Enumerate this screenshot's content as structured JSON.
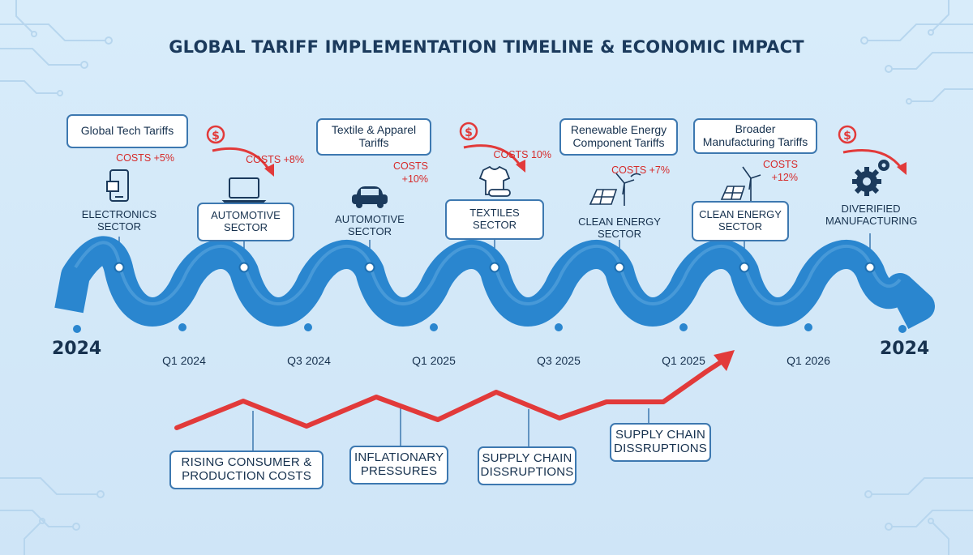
{
  "title": "GLOBAL TARIFF IMPLEMENTATION TIMELINE & ECONOMIC IMPACT",
  "colors": {
    "background": "#d5e9f8",
    "wave": "#2a86cf",
    "arrow": "#e23a3a",
    "box_border": "#3d78b0",
    "text": "#17324f",
    "cost_text": "#d62a2a"
  },
  "tariffs": [
    "Global Tech Tariffs",
    "Textile & Apparel Tariffs",
    "Renewable Energy Component Tariffs",
    "Broader Manufacturing Tariffs"
  ],
  "sectors": [
    {
      "label": "ELECTRONICS SECTOR",
      "icon": "smartphone-icon",
      "cost": "COSTS +5%"
    },
    {
      "label": "AUTOMOTIVE SECTOR",
      "icon": "laptop-icon",
      "cost": "COSTS +8%"
    },
    {
      "label": "AUTOMOTIVE SECTOR",
      "icon": "car-icon",
      "cost": "COSTS +10%"
    },
    {
      "label": "TEXTILES SECTOR",
      "icon": "tshirt-icon",
      "cost": "COSTS 10%"
    },
    {
      "label": "CLEAN ENERGY SECTOR",
      "icon": "solar-wind-icon",
      "cost": "COSTS +7%"
    },
    {
      "label": "CLEAN ENERGY SECTOR",
      "icon": "solar-wind-icon",
      "cost": "COSTS +12%"
    },
    {
      "label": "DIVERIFIED MANUFACTURING",
      "icon": "gears-icon",
      "cost": ""
    }
  ],
  "timeline": {
    "start_year": "2024",
    "end_year": "2024",
    "quarters": [
      "Q1 2024",
      "Q3 2024",
      "Q1 2025",
      "Q3 2025",
      "Q1 2025",
      "Q1 2026"
    ]
  },
  "impacts": [
    "RISING CONSUMER & PRODUCTION COSTS",
    "INFLATIONARY PRESSURES",
    "SUPPLY CHAIN DISSRUPTIONS",
    "SUPPLY CHAIN DISSRUPTIONS"
  ],
  "dollar_icon": "dollar-circle-icon"
}
